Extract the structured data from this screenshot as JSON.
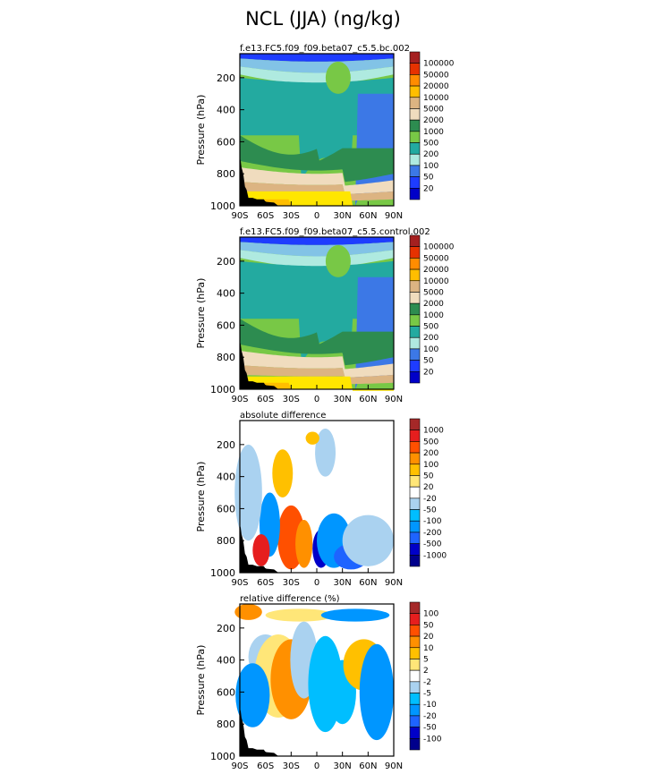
{
  "figure_title": "NCL (JJA) (ng/kg)",
  "colors": {
    "abs_scale": [
      "#0000c8",
      "#1e3cff",
      "#3c78e6",
      "#82c3e6",
      "#afeae0",
      "#23aaa0",
      "#78c846",
      "#2d8c50",
      "#f0dcbe",
      "#dcb482",
      "#ffe600",
      "#ffbe00",
      "#ff8c00",
      "#e63200",
      "#a52020"
    ],
    "diff_scale": [
      "#00008c",
      "#0000c8",
      "#1e64ff",
      "#0096ff",
      "#00beff",
      "#aad2f0",
      "#ffffff",
      "#ffe678",
      "#ffc000",
      "#ff9000",
      "#ff5000",
      "#e61e1e",
      "#a52828"
    ],
    "terrain": "#000000",
    "panel_bg": "#ffffff"
  },
  "chart_data": [
    {
      "type": "heatmap",
      "title": "f.e13.FC5.f09_f09.beta07_c5.5.bc.002",
      "ylabel": "Pressure (hPa)",
      "xlabel": "",
      "x_ticks": [
        "90S",
        "60S",
        "30S",
        "0",
        "30N",
        "60N",
        "90N"
      ],
      "y_ticks": [
        "200",
        "400",
        "600",
        "800",
        "1000"
      ],
      "xlim": [
        -90,
        90
      ],
      "ylim": [
        1000,
        50
      ],
      "colorbar_levels": [
        "100000",
        "50000",
        "20000",
        "10000",
        "5000",
        "2000",
        "1000",
        "500",
        "200",
        "100",
        "50",
        "20"
      ],
      "field": {
        "top_band": [
          [
            -90,
            10
          ],
          [
            -60,
            70
          ],
          [
            -30,
            110
          ],
          [
            0,
            140
          ],
          [
            30,
            110
          ],
          [
            60,
            70
          ],
          [
            90,
            10
          ]
        ],
        "mid_band": [
          [
            -90,
            10
          ],
          [
            -60,
            0
          ],
          [
            -30,
            0
          ],
          [
            0,
            50
          ],
          [
            30,
            20
          ],
          [
            60,
            -30
          ],
          [
            90,
            -60
          ]
        ],
        "low_band": [
          [
            -90,
            0
          ],
          [
            -60,
            15
          ],
          [
            -30,
            25
          ],
          [
            0,
            20
          ],
          [
            30,
            10
          ],
          [
            60,
            -10
          ],
          [
            90,
            -30
          ]
        ],
        "description_levels_per_band": [
          20,
          500,
          2000,
          20000
        ]
      }
    },
    {
      "type": "heatmap",
      "title": "f.e13.FC5.f09_f09.beta07_c5.5.control.002",
      "ylabel": "Pressure (hPa)",
      "xlabel": "",
      "x_ticks": [
        "90S",
        "60S",
        "30S",
        "0",
        "30N",
        "60N",
        "90N"
      ],
      "y_ticks": [
        "200",
        "400",
        "600",
        "800",
        "1000"
      ],
      "xlim": [
        -90,
        90
      ],
      "ylim": [
        1000,
        50
      ],
      "colorbar_levels": [
        "100000",
        "50000",
        "20000",
        "10000",
        "5000",
        "2000",
        "1000",
        "500",
        "200",
        "100",
        "50",
        "20"
      ]
    },
    {
      "type": "heatmap",
      "title": "absolute difference",
      "ylabel": "Pressure (hPa)",
      "xlabel": "",
      "x_ticks": [
        "90S",
        "60S",
        "30S",
        "0",
        "30N",
        "60N",
        "90N"
      ],
      "y_ticks": [
        "200",
        "400",
        "600",
        "800",
        "1000"
      ],
      "xlim": [
        -90,
        90
      ],
      "ylim": [
        1000,
        50
      ],
      "colorbar_levels": [
        "1000",
        "500",
        "200",
        "100",
        "50",
        "20",
        "-20",
        "-50",
        "-100",
        "-200",
        "-500",
        "-1000"
      ]
    },
    {
      "type": "heatmap",
      "title": "relative difference (%)",
      "ylabel": "Pressure (hPa)",
      "xlabel": "",
      "x_ticks": [
        "90S",
        "60S",
        "30S",
        "0",
        "30N",
        "60N",
        "90N"
      ],
      "y_ticks": [
        "200",
        "400",
        "600",
        "800",
        "1000"
      ],
      "xlim": [
        -90,
        90
      ],
      "ylim": [
        1000,
        50
      ],
      "colorbar_levels": [
        "100",
        "50",
        "20",
        "10",
        "5",
        "2",
        "-2",
        "-5",
        "-10",
        "-20",
        "-50",
        "-100"
      ]
    }
  ]
}
